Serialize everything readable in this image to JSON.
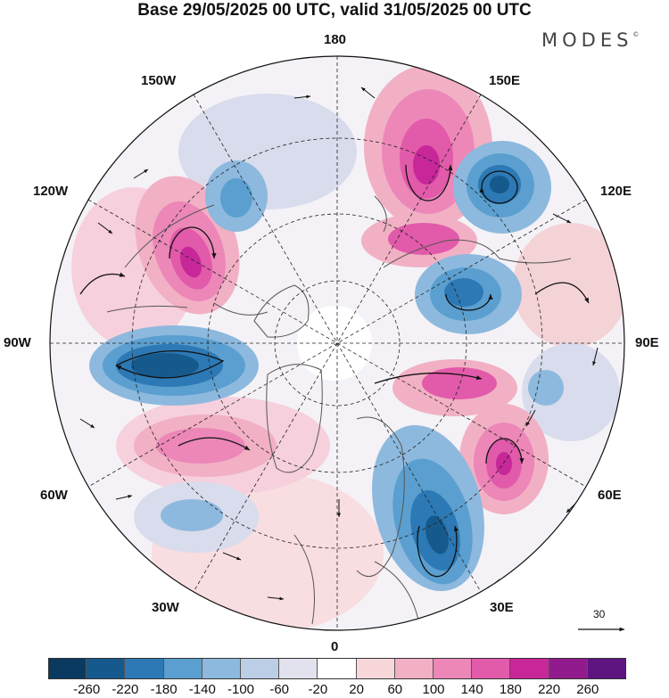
{
  "title": "Base 29/05/2025 00 UTC, valid 31/05/2025 00 UTC",
  "brand": "MODES",
  "brand_mark": "©",
  "longitude_labels": {
    "top": "180",
    "bottom": "0",
    "left": "90W",
    "right": "90E",
    "upper_left": "150W",
    "upper_right": "150E",
    "mid_left_top": "120W",
    "mid_right_top": "120E",
    "mid_left_bottom": "60W",
    "mid_right_bottom": "60E",
    "lower_left": "30W",
    "lower_right": "30E"
  },
  "reference_vector": "30",
  "colorbar": {
    "colors": [
      "#0b3a60",
      "#16598d",
      "#2c79b5",
      "#5a9fcf",
      "#8db9de",
      "#bccde6",
      "#e2e2ee",
      "#ffffff",
      "#f8d7db",
      "#f2b0c4",
      "#ec87b8",
      "#e25aaa",
      "#c72799",
      "#911b8c",
      "#5e1580"
    ],
    "ticks": [
      "-260",
      "-220",
      "-180",
      "-140",
      "-100",
      "-60",
      "-20",
      "20",
      "60",
      "100",
      "140",
      "180",
      "220",
      "260"
    ]
  },
  "anomaly_centers": [
    {
      "id": "east-pacific-high",
      "value": 220
    },
    {
      "id": "east-siberia-low",
      "value": -220
    },
    {
      "id": "okhotsk-high",
      "value": 160
    },
    {
      "id": "west-siberia-low",
      "value": -180
    },
    {
      "id": "west-canada-high",
      "value": 220
    },
    {
      "id": "east-canada-low",
      "value": -260
    },
    {
      "id": "north-atlantic-high",
      "value": 140
    },
    {
      "id": "scandinavia-low",
      "value": -220
    },
    {
      "id": "ural-high",
      "value": 220
    },
    {
      "id": "arctic-siberia-high",
      "value": 180
    }
  ]
}
